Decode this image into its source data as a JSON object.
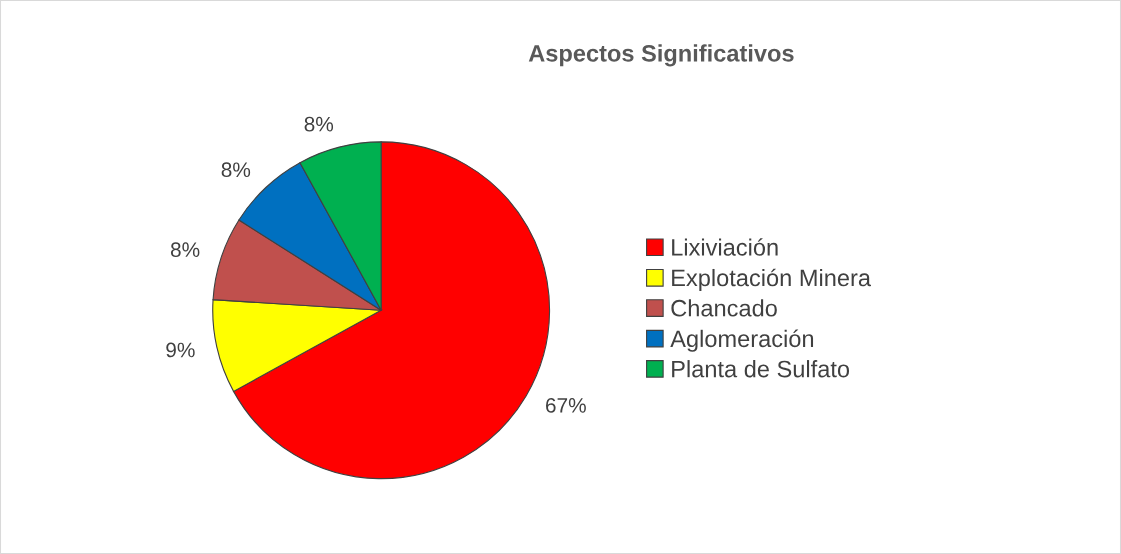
{
  "chart_data": {
    "type": "pie",
    "title": "Aspectos Significativos",
    "categories": [
      "Lixiviación",
      "Explotación Minera",
      "Chancado",
      "Aglomeración",
      "Planta de Sulfato"
    ],
    "values": [
      67,
      9,
      8,
      8,
      8
    ],
    "colors": [
      "#ff0000",
      "#ffff00",
      "#c0504d",
      "#0070c0",
      "#00b050"
    ],
    "value_labels": [
      "67%",
      "9%",
      "8%",
      "8%",
      "8%"
    ],
    "legend": "right"
  }
}
